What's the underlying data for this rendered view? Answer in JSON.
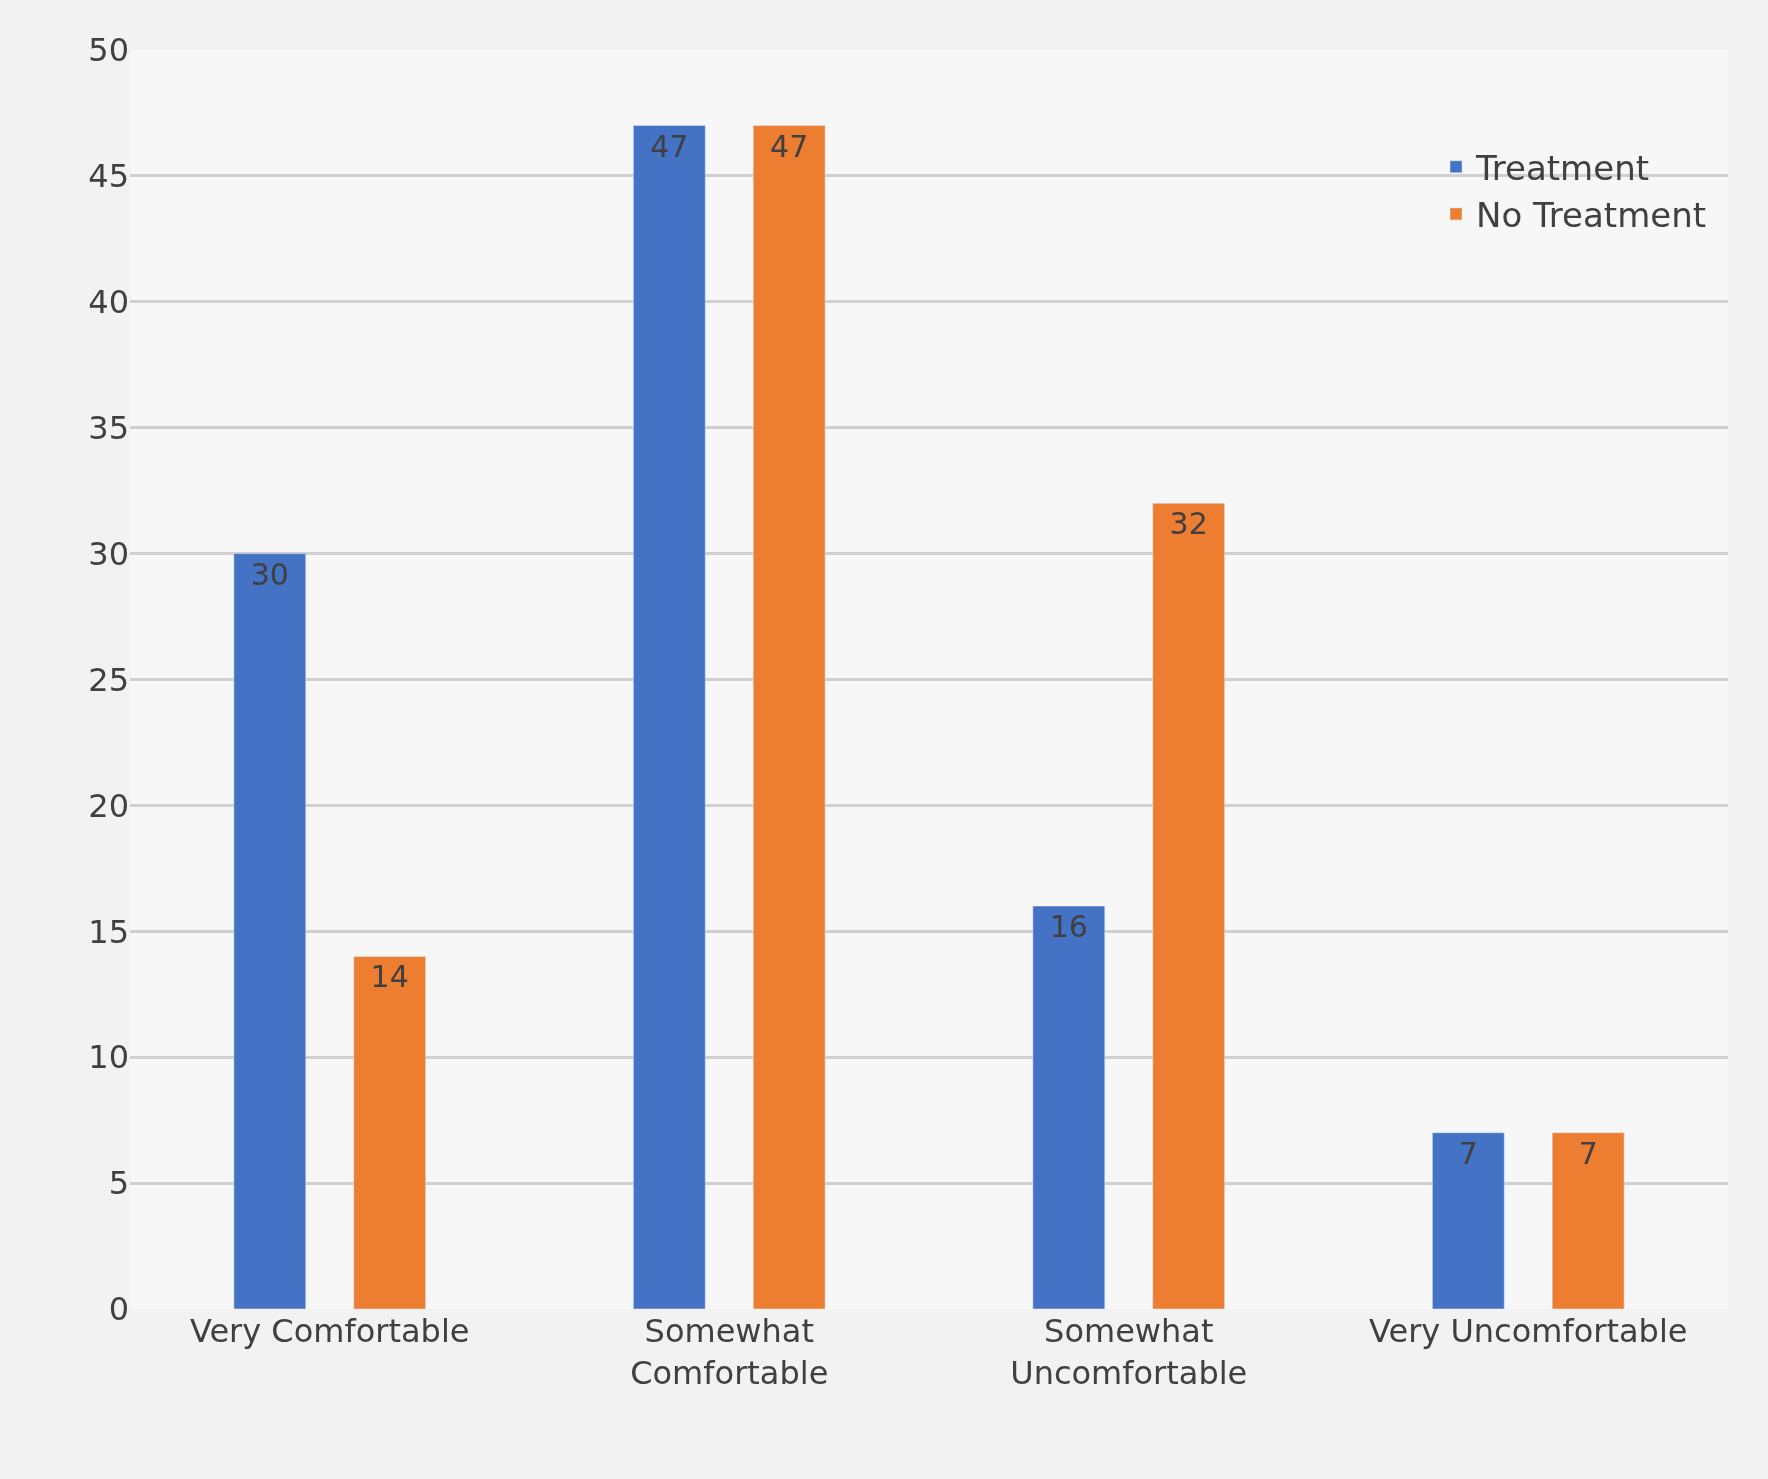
{
  "chart_data": {
    "type": "bar",
    "categories": [
      "Very Comfortable",
      "Somewhat\nComfortable",
      "Somewhat\nUncomfortable",
      "Very Uncomfortable"
    ],
    "series": [
      {
        "name": "Treatment",
        "color": "#4472c4",
        "values": [
          30,
          47,
          16,
          7
        ]
      },
      {
        "name": "No Treatment",
        "color": "#ed7d31",
        "values": [
          14,
          47,
          32,
          7
        ]
      }
    ],
    "ylim": [
      0,
      50
    ],
    "yticks": [
      0,
      5,
      10,
      15,
      20,
      25,
      30,
      35,
      40,
      45,
      50
    ],
    "grid": "y",
    "legend": "top right",
    "data_labels": true
  }
}
